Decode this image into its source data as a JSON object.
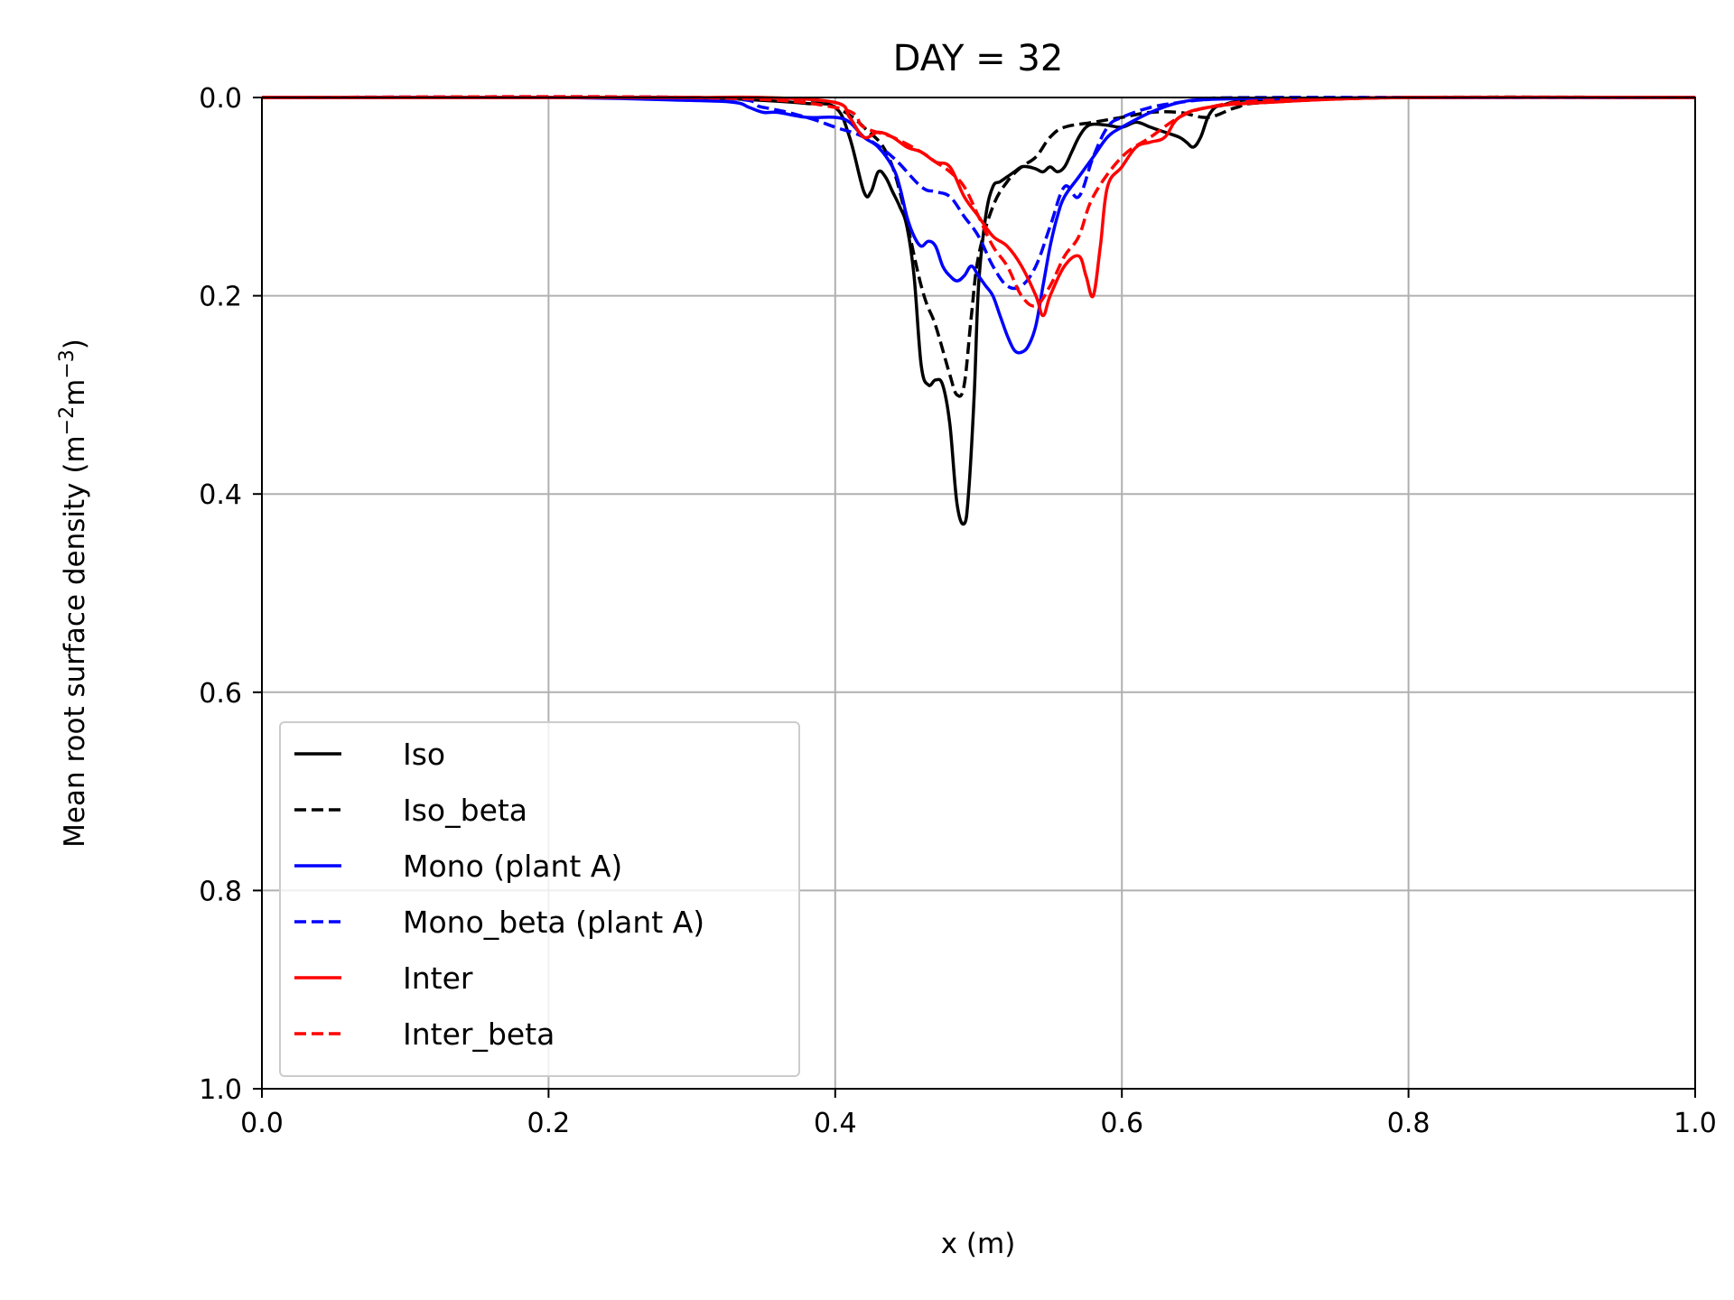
{
  "chart_data": {
    "type": "line",
    "title": "DAY = 32",
    "xlabel": "x (m)",
    "ylabel": "Mean root surface density (m",
    "ylabel_unit_parts": [
      "Mean root surface density (m",
      "−2",
      "m",
      "−3",
      ")"
    ],
    "xlim": [
      0.0,
      1.0
    ],
    "ylim": [
      0.0,
      1.0
    ],
    "y_inverted": true,
    "grid": true,
    "legend_position": "lower-left",
    "x_ticks": [
      "0.0",
      "0.2",
      "0.4",
      "0.6",
      "0.8",
      "1.0"
    ],
    "y_ticks": [
      "0.0",
      "0.2",
      "0.4",
      "0.6",
      "0.8",
      "1.0"
    ],
    "series": [
      {
        "name": "Iso",
        "color": "#000000",
        "style": "solid",
        "x": [
          0.0,
          0.1,
          0.2,
          0.3,
          0.35,
          0.38,
          0.4,
          0.41,
          0.42,
          0.425,
          0.43,
          0.435,
          0.44,
          0.445,
          0.45,
          0.455,
          0.46,
          0.465,
          0.47,
          0.475,
          0.48,
          0.485,
          0.49,
          0.493,
          0.497,
          0.5,
          0.505,
          0.51,
          0.515,
          0.52,
          0.525,
          0.53,
          0.535,
          0.54,
          0.545,
          0.55,
          0.555,
          0.56,
          0.565,
          0.57,
          0.575,
          0.58,
          0.59,
          0.6,
          0.61,
          0.62,
          0.63,
          0.64,
          0.645,
          0.65,
          0.655,
          0.66,
          0.665,
          0.67,
          0.68,
          0.7,
          0.8,
          1.0
        ],
        "y": [
          0.0,
          0.0,
          0.0,
          0.0,
          0.003,
          0.006,
          0.01,
          0.04,
          0.095,
          0.095,
          0.075,
          0.08,
          0.095,
          0.11,
          0.13,
          0.18,
          0.27,
          0.29,
          0.285,
          0.29,
          0.33,
          0.41,
          0.43,
          0.4,
          0.3,
          0.19,
          0.12,
          0.09,
          0.085,
          0.08,
          0.075,
          0.07,
          0.07,
          0.072,
          0.075,
          0.07,
          0.075,
          0.07,
          0.055,
          0.04,
          0.03,
          0.027,
          0.028,
          0.03,
          0.025,
          0.03,
          0.035,
          0.04,
          0.045,
          0.05,
          0.04,
          0.02,
          0.01,
          0.008,
          0.004,
          0.002,
          0.0,
          0.0
        ]
      },
      {
        "name": "Iso_beta",
        "color": "#000000",
        "style": "dashed",
        "x": [
          0.0,
          0.3,
          0.38,
          0.4,
          0.42,
          0.44,
          0.46,
          0.47,
          0.48,
          0.485,
          0.49,
          0.495,
          0.5,
          0.51,
          0.52,
          0.53,
          0.54,
          0.55,
          0.56,
          0.58,
          0.6,
          0.62,
          0.64,
          0.66,
          0.68,
          0.7,
          0.8,
          1.0
        ],
        "y": [
          0.0,
          0.0,
          0.005,
          0.01,
          0.03,
          0.07,
          0.19,
          0.23,
          0.28,
          0.3,
          0.29,
          0.22,
          0.16,
          0.11,
          0.085,
          0.07,
          0.06,
          0.04,
          0.03,
          0.025,
          0.02,
          0.015,
          0.015,
          0.02,
          0.01,
          0.005,
          0.0,
          0.0
        ]
      },
      {
        "name": "Mono (plant A)",
        "color": "#0000ff",
        "style": "solid",
        "x": [
          0.0,
          0.2,
          0.3,
          0.33,
          0.34,
          0.35,
          0.36,
          0.38,
          0.4,
          0.41,
          0.42,
          0.43,
          0.44,
          0.445,
          0.45,
          0.455,
          0.46,
          0.465,
          0.47,
          0.475,
          0.48,
          0.485,
          0.49,
          0.495,
          0.5,
          0.505,
          0.51,
          0.515,
          0.52,
          0.525,
          0.53,
          0.535,
          0.54,
          0.545,
          0.55,
          0.555,
          0.56,
          0.57,
          0.58,
          0.59,
          0.6,
          0.62,
          0.64,
          0.66,
          0.7,
          0.8,
          1.0
        ],
        "y": [
          0.0,
          0.0,
          0.003,
          0.005,
          0.01,
          0.015,
          0.015,
          0.02,
          0.02,
          0.025,
          0.04,
          0.05,
          0.07,
          0.09,
          0.12,
          0.14,
          0.15,
          0.145,
          0.15,
          0.17,
          0.18,
          0.185,
          0.18,
          0.17,
          0.18,
          0.19,
          0.2,
          0.22,
          0.24,
          0.255,
          0.257,
          0.25,
          0.23,
          0.19,
          0.15,
          0.12,
          0.1,
          0.08,
          0.06,
          0.04,
          0.03,
          0.015,
          0.005,
          0.002,
          0.001,
          0.0,
          0.0
        ]
      },
      {
        "name": "Mono_beta (plant A)",
        "color": "#0000ff",
        "style": "dashed",
        "x": [
          0.0,
          0.3,
          0.35,
          0.38,
          0.4,
          0.42,
          0.44,
          0.46,
          0.47,
          0.48,
          0.49,
          0.5,
          0.51,
          0.52,
          0.53,
          0.54,
          0.55,
          0.56,
          0.57,
          0.58,
          0.59,
          0.6,
          0.62,
          0.64,
          0.66,
          0.7,
          1.0
        ],
        "y": [
          0.0,
          0.0,
          0.01,
          0.02,
          0.03,
          0.04,
          0.06,
          0.09,
          0.095,
          0.1,
          0.12,
          0.14,
          0.17,
          0.19,
          0.19,
          0.17,
          0.13,
          0.09,
          0.1,
          0.06,
          0.03,
          0.02,
          0.01,
          0.005,
          0.002,
          0.0,
          0.0
        ]
      },
      {
        "name": "Inter",
        "color": "#ff0000",
        "style": "solid",
        "x": [
          0.0,
          0.1,
          0.2,
          0.3,
          0.35,
          0.4,
          0.41,
          0.42,
          0.43,
          0.44,
          0.45,
          0.46,
          0.47,
          0.48,
          0.49,
          0.5,
          0.51,
          0.52,
          0.53,
          0.54,
          0.545,
          0.55,
          0.56,
          0.57,
          0.575,
          0.58,
          0.585,
          0.59,
          0.6,
          0.61,
          0.62,
          0.63,
          0.64,
          0.66,
          0.7,
          0.8,
          1.0
        ],
        "y": [
          0.0,
          0.0,
          0.0,
          0.0,
          0.0,
          0.005,
          0.02,
          0.04,
          0.035,
          0.04,
          0.05,
          0.055,
          0.065,
          0.07,
          0.1,
          0.12,
          0.14,
          0.15,
          0.17,
          0.2,
          0.22,
          0.2,
          0.17,
          0.16,
          0.18,
          0.2,
          0.15,
          0.09,
          0.07,
          0.05,
          0.045,
          0.04,
          0.02,
          0.01,
          0.005,
          0.0,
          0.0
        ]
      },
      {
        "name": "Inter_beta",
        "color": "#ff0000",
        "style": "dashed",
        "x": [
          0.0,
          0.3,
          0.4,
          0.42,
          0.44,
          0.46,
          0.47,
          0.48,
          0.49,
          0.5,
          0.51,
          0.52,
          0.53,
          0.54,
          0.55,
          0.56,
          0.57,
          0.58,
          0.6,
          0.62,
          0.64,
          0.66,
          0.7,
          0.8,
          1.0
        ],
        "y": [
          0.0,
          0.0,
          0.01,
          0.03,
          0.04,
          0.055,
          0.065,
          0.075,
          0.09,
          0.12,
          0.15,
          0.17,
          0.2,
          0.21,
          0.19,
          0.16,
          0.14,
          0.1,
          0.06,
          0.04,
          0.02,
          0.01,
          0.003,
          0.0,
          0.0
        ]
      }
    ]
  }
}
